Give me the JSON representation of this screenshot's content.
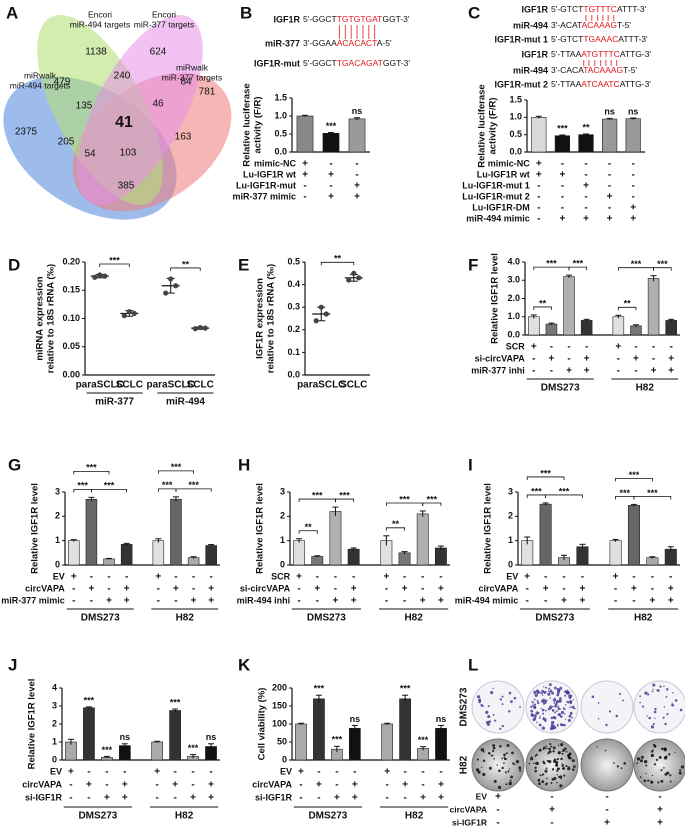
{
  "venn": {
    "panel": "A",
    "sets": [
      {
        "name": [
          "miRwalk",
          "miR-494 targets"
        ]
      },
      {
        "name": [
          "Encori",
          "miR-494 targets"
        ]
      },
      {
        "name": [
          "Encori",
          "miR-377 targets"
        ]
      },
      {
        "name": [
          "miRwalk",
          "miR-377 targets"
        ]
      }
    ],
    "regions": [
      2375,
      1138,
      624,
      781,
      479,
      240,
      84,
      135,
      46,
      41,
      205,
      163,
      54,
      103,
      385
    ]
  },
  "sequences_b": [
    {
      "name": "IGF1R",
      "pre": "5'-GGCT",
      "core": "TGTGTGAT",
      "post": "GGT-3'"
    },
    {
      "name": "miR-377",
      "pre": "3'-GGAA",
      "core": "ACACACT",
      "post": "A-5'"
    },
    {
      "name": "IGF1R-mut",
      "pre": "5'-GGCT",
      "core": "TGACAGAT",
      "post": "GGT-3'"
    }
  ],
  "sequences_c": [
    {
      "name": "IGF1R",
      "pre": "5'-GTCT",
      "core": "TGTTTC",
      "post": "ATTT-3'"
    },
    {
      "name": "miR-494",
      "pre": "3'-ACAT",
      "core": "ACAAAG",
      "post": "T-5'"
    },
    {
      "name": "IGF1R-mut 1",
      "pre": "5'-GTCT",
      "core": "TGAAAC",
      "post": "ATTT-3'"
    },
    {
      "name": "IGF1R",
      "pre": "5'-TTAA",
      "core": "ATGTTTC",
      "post": "ATTG-3'"
    },
    {
      "name": "miR-494",
      "pre": "3'-CACA",
      "core": "TACAAAG",
      "post": "T-5'"
    },
    {
      "name": "IGF1R-mut 2",
      "pre": "5'-TTAA",
      "core": "ATCAATC",
      "post": "ATTG-3'"
    }
  ],
  "chart_data": [
    {
      "panel": "B",
      "type": "bar",
      "ylabel": [
        "Relative luciferase",
        "activity (F/R)"
      ],
      "ylim": [
        0,
        1.5
      ],
      "yticks": [
        {
          "value": 0,
          "label": "0.0"
        },
        {
          "value": 0.5,
          "label": "0.5"
        },
        {
          "value": 1,
          "label": "1.0"
        },
        {
          "value": 1.5,
          "label": "1.5"
        }
      ],
      "values": [
        1.0,
        0.52,
        0.92
      ],
      "errors": [
        0.02,
        0.02,
        0.03
      ],
      "colors": [
        "#888888",
        "#111111",
        "#9a9a9a"
      ],
      "annotations": [
        null,
        "***",
        "ns"
      ],
      "conditions": [
        {
          "name": "mimic-NC",
          "marks": [
            "+",
            "-",
            "-"
          ]
        },
        {
          "name": "Lu-IGF1R wt",
          "marks": [
            "+",
            "+",
            "-"
          ]
        },
        {
          "name": "Lu-IGF1R-mut",
          "marks": [
            "-",
            "-",
            "+"
          ]
        },
        {
          "name": "miR-377 mimic",
          "marks": [
            "-",
            "+",
            "+"
          ]
        }
      ]
    },
    {
      "panel": "C",
      "type": "bar",
      "ylabel": [
        "Relative luciferase",
        "activity (F/R)"
      ],
      "ylim": [
        0,
        1.5
      ],
      "yticks": [
        {
          "value": 0,
          "label": "0.0"
        },
        {
          "value": 0.5,
          "label": "0.5"
        },
        {
          "value": 1,
          "label": "1.0"
        },
        {
          "value": 1.5,
          "label": "1.5"
        }
      ],
      "values": [
        1.0,
        0.47,
        0.5,
        0.95,
        0.96
      ],
      "errors": [
        0.03,
        0.02,
        0.02,
        0.02,
        0.02
      ],
      "colors": [
        "#d9d9d9",
        "#111111",
        "#111111",
        "#999999",
        "#999999"
      ],
      "annotations": [
        null,
        "***",
        "**",
        "ns",
        "ns"
      ],
      "conditions": [
        {
          "name": "mimic-NC",
          "marks": [
            "+",
            "-",
            "-",
            "-",
            "-"
          ]
        },
        {
          "name": "Lu-IGF1R wt",
          "marks": [
            "+",
            "+",
            "-",
            "-",
            "-"
          ]
        },
        {
          "name": "Lu-IGF1R-mut 1",
          "marks": [
            "-",
            "-",
            "+",
            "-",
            "-"
          ]
        },
        {
          "name": "Lu-IGF1R-mut 2",
          "marks": [
            "-",
            "-",
            "-",
            "+",
            "-"
          ]
        },
        {
          "name": "Lu-IGF1R-DM",
          "marks": [
            "-",
            "-",
            "-",
            "-",
            "+"
          ]
        },
        {
          "name": "miR-494 mimic",
          "marks": [
            "-",
            "+",
            "+",
            "+",
            "+"
          ]
        }
      ]
    },
    {
      "panel": "D",
      "type": "dot",
      "ylabel": [
        "miRNA expression",
        "relative to 18S rRNA (‰)"
      ],
      "ylim": [
        0,
        0.2
      ],
      "yticks": [
        {
          "value": 0,
          "label": "0.00"
        },
        {
          "value": 0.05,
          "label": "0.05"
        },
        {
          "value": 0.1,
          "label": "0.10"
        },
        {
          "value": 0.15,
          "label": "0.15"
        },
        {
          "value": 0.2,
          "label": "0.20"
        }
      ],
      "categories": [
        "paraSCLC",
        "SCLC",
        "paraSCLC",
        "SCLC"
      ],
      "groups": [
        "miR-377",
        "miR-494"
      ],
      "points": [
        [
          0.173,
          0.177,
          0.175
        ],
        [
          0.105,
          0.112,
          0.109
        ],
        [
          0.145,
          0.17,
          0.158
        ],
        [
          0.082,
          0.084,
          0.083
        ]
      ],
      "means": [
        0.175,
        0.109,
        0.158,
        0.083
      ],
      "sds": [
        0.003,
        0.005,
        0.013,
        0.002
      ],
      "color": "#444444",
      "brackets": [
        {
          "from": 0,
          "to": 1,
          "label": "***"
        },
        {
          "from": 2,
          "to": 3,
          "label": "**"
        }
      ]
    },
    {
      "panel": "E",
      "type": "dot",
      "ylabel": [
        "IGF1R expression",
        "relative to 18S rRNA (‰)"
      ],
      "ylim": [
        0,
        0.5
      ],
      "yticks": [
        {
          "value": 0,
          "label": "0.0"
        },
        0.1,
        0.2,
        0.3,
        0.4,
        0.5
      ],
      "categories": [
        "paraSCLC",
        "SCLC"
      ],
      "points": [
        [
          0.24,
          0.3,
          0.27
        ],
        [
          0.42,
          0.45,
          0.43
        ]
      ],
      "means": [
        0.27,
        0.43
      ],
      "sds": [
        0.03,
        0.015
      ],
      "color": "#444444",
      "brackets": [
        {
          "from": 0,
          "to": 1,
          "label": "**"
        }
      ]
    },
    {
      "panel": "F",
      "type": "bar",
      "ylabel": [
        "Relative IGF1R level"
      ],
      "ylim": [
        0,
        4
      ],
      "yticks": [
        {
          "value": 0,
          "label": "0.0"
        },
        {
          "value": 1,
          "label": "1.0"
        },
        {
          "value": 2,
          "label": "2.0"
        },
        {
          "value": 3,
          "label": "3.0"
        },
        {
          "value": 4,
          "label": "4.0"
        }
      ],
      "values": [
        1.0,
        0.6,
        3.2,
        0.8,
        1.0,
        0.5,
        3.1,
        0.8
      ],
      "errors": [
        0.1,
        0.05,
        0.08,
        0.06,
        0.08,
        0.06,
        0.15,
        0.06
      ],
      "colors": [
        "#e0e0e0",
        "#777777",
        "#b0b0b0",
        "#333333",
        "#e0e0e0",
        "#777777",
        "#b0b0b0",
        "#333333"
      ],
      "brackets": [
        {
          "from": 0,
          "to": 1,
          "label": "**"
        },
        {
          "from": 0,
          "to": 2,
          "label": "***"
        },
        {
          "from": 2,
          "to": 3,
          "label": "***"
        },
        {
          "from": 4,
          "to": 5,
          "label": "**"
        },
        {
          "from": 4,
          "to": 6,
          "label": "***"
        },
        {
          "from": 6,
          "to": 7,
          "label": "***"
        }
      ],
      "conditions": [
        {
          "name": "SCR",
          "marks": [
            "+",
            "-",
            "-",
            "-",
            "+",
            "-",
            "-",
            "-"
          ]
        },
        {
          "name": "si-circVAPA",
          "marks": [
            "-",
            "+",
            "-",
            "+",
            "-",
            "+",
            "-",
            "+"
          ]
        },
        {
          "name": "miR-377 inhi",
          "marks": [
            "-",
            "-",
            "+",
            "+",
            "-",
            "-",
            "+",
            "+"
          ]
        }
      ],
      "groups": [
        "DMS273",
        "H82"
      ]
    },
    {
      "panel": "G",
      "type": "bar",
      "ylabel": [
        "Relative IGF1R level"
      ],
      "ylim": [
        0,
        3
      ],
      "yticks": [
        0,
        1,
        2,
        3
      ],
      "values": [
        1.0,
        2.7,
        0.25,
        0.85,
        1.0,
        2.7,
        0.3,
        0.8
      ],
      "errors": [
        0.04,
        0.08,
        0.02,
        0.04,
        0.08,
        0.1,
        0.04,
        0.04
      ],
      "colors": [
        "#e0e0e0",
        "#666666",
        "#aaaaaa",
        "#333333",
        "#e0e0e0",
        "#666666",
        "#aaaaaa",
        "#333333"
      ],
      "brackets": [
        {
          "from": 0,
          "to": 1,
          "label": "***"
        },
        {
          "from": 1,
          "to": 3,
          "label": "***"
        },
        {
          "from": 0,
          "to": 2,
          "label": "***"
        },
        {
          "from": 4,
          "to": 5,
          "label": "***"
        },
        {
          "from": 5,
          "to": 7,
          "label": "***"
        },
        {
          "from": 4,
          "to": 6,
          "label": "***"
        }
      ],
      "conditions": [
        {
          "name": "EV",
          "marks": [
            "+",
            "-",
            "-",
            "-",
            "+",
            "-",
            "-",
            "-"
          ]
        },
        {
          "name": "circVAPA",
          "marks": [
            "-",
            "+",
            "-",
            "+",
            "-",
            "+",
            "-",
            "+"
          ]
        },
        {
          "name": "miR-377 mimic",
          "marks": [
            "-",
            "-",
            "+",
            "+",
            "-",
            "-",
            "+",
            "+"
          ]
        }
      ],
      "groups": [
        "DMS273",
        "H82"
      ]
    },
    {
      "panel": "H",
      "type": "bar",
      "ylabel": [
        "Relative IGF1R level"
      ],
      "ylim": [
        0,
        3
      ],
      "yticks": [
        0,
        1,
        2,
        3
      ],
      "values": [
        1.0,
        0.35,
        2.2,
        0.65,
        1.0,
        0.5,
        2.1,
        0.7
      ],
      "errors": [
        0.08,
        0.03,
        0.18,
        0.05,
        0.2,
        0.05,
        0.12,
        0.08
      ],
      "colors": [
        "#e0e0e0",
        "#777777",
        "#b0b0b0",
        "#333333",
        "#e0e0e0",
        "#777777",
        "#b0b0b0",
        "#333333"
      ],
      "brackets": [
        {
          "from": 0,
          "to": 1,
          "label": "**"
        },
        {
          "from": 0,
          "to": 2,
          "label": "***"
        },
        {
          "from": 2,
          "to": 3,
          "label": "***"
        },
        {
          "from": 4,
          "to": 5,
          "label": "**"
        },
        {
          "from": 4,
          "to": 6,
          "label": "***"
        },
        {
          "from": 6,
          "to": 7,
          "label": "***"
        }
      ],
      "conditions": [
        {
          "name": "SCR",
          "marks": [
            "+",
            "-",
            "-",
            "-",
            "+",
            "-",
            "-",
            "-"
          ]
        },
        {
          "name": "si-circVAPA",
          "marks": [
            "-",
            "+",
            "-",
            "+",
            "-",
            "+",
            "-",
            "+"
          ]
        },
        {
          "name": "miR-494 inhi",
          "marks": [
            "-",
            "-",
            "+",
            "+",
            "-",
            "-",
            "+",
            "+"
          ]
        }
      ],
      "groups": [
        "DMS273",
        "H82"
      ]
    },
    {
      "panel": "I",
      "type": "bar",
      "ylabel": [
        "Relative IGF1R level"
      ],
      "ylim": [
        0,
        3
      ],
      "yticks": [
        0,
        1,
        2,
        3
      ],
      "values": [
        1.0,
        2.5,
        0.3,
        0.75,
        1.0,
        2.45,
        0.3,
        0.65
      ],
      "errors": [
        0.15,
        0.05,
        0.1,
        0.1,
        0.05,
        0.04,
        0.04,
        0.1
      ],
      "colors": [
        "#e0e0e0",
        "#666666",
        "#aaaaaa",
        "#333333",
        "#e0e0e0",
        "#666666",
        "#aaaaaa",
        "#333333"
      ],
      "brackets": [
        {
          "from": 0,
          "to": 1,
          "label": "***"
        },
        {
          "from": 1,
          "to": 3,
          "label": "***"
        },
        {
          "from": 0,
          "to": 2,
          "label": "***"
        },
        {
          "from": 4,
          "to": 5,
          "label": "***"
        },
        {
          "from": 5,
          "to": 7,
          "label": "***"
        },
        {
          "from": 4,
          "to": 6,
          "label": "***"
        }
      ],
      "conditions": [
        {
          "name": "EV",
          "marks": [
            "+",
            "-",
            "-",
            "-",
            "+",
            "-",
            "-",
            "-"
          ]
        },
        {
          "name": "circVAPA",
          "marks": [
            "-",
            "+",
            "-",
            "+",
            "-",
            "+",
            "-",
            "+"
          ]
        },
        {
          "name": "miR-494 mimic",
          "marks": [
            "-",
            "-",
            "+",
            "+",
            "-",
            "-",
            "+",
            "+"
          ]
        }
      ],
      "groups": [
        "DMS273",
        "H82"
      ]
    },
    {
      "panel": "J",
      "type": "bar",
      "ylabel": [
        "Relative IGF1R level"
      ],
      "ylim": [
        0,
        4
      ],
      "yticks": [
        0,
        1,
        2,
        3,
        4
      ],
      "values": [
        1.0,
        2.9,
        0.15,
        0.8,
        1.0,
        2.75,
        0.2,
        0.75
      ],
      "errors": [
        0.15,
        0.05,
        0.05,
        0.1,
        0.04,
        0.08,
        0.1,
        0.15
      ],
      "colors": [
        "#aaaaaa",
        "#333333",
        "#aaaaaa",
        "#111111",
        "#aaaaaa",
        "#333333",
        "#aaaaaa",
        "#111111"
      ],
      "annotations": [
        null,
        "***",
        "***",
        "ns",
        null,
        "***",
        "***",
        "ns"
      ],
      "conditions": [
        {
          "name": "EV",
          "marks": [
            "+",
            "-",
            "-",
            "-",
            "+",
            "-",
            "-",
            "-"
          ]
        },
        {
          "name": "circVAPA",
          "marks": [
            "-",
            "+",
            "-",
            "+",
            "-",
            "+",
            "-",
            "+"
          ]
        },
        {
          "name": "si-IGF1R",
          "marks": [
            "-",
            "-",
            "+",
            "+",
            "-",
            "-",
            "+",
            "+"
          ]
        }
      ],
      "groups": [
        "DMS273",
        "H82"
      ]
    },
    {
      "panel": "K",
      "type": "bar",
      "ylabel": [
        "Cell viability (%)"
      ],
      "ylim": [
        0,
        200
      ],
      "yticks": [
        0,
        50,
        100,
        150,
        200
      ],
      "values": [
        100,
        170,
        30,
        88,
        100,
        170,
        32,
        88
      ],
      "errors": [
        2,
        10,
        8,
        8,
        2,
        10,
        5,
        8
      ],
      "colors": [
        "#aaaaaa",
        "#333333",
        "#aaaaaa",
        "#111111",
        "#aaaaaa",
        "#333333",
        "#aaaaaa",
        "#111111"
      ],
      "annotations": [
        null,
        "***",
        "***",
        "ns",
        null,
        "***",
        "***",
        "ns"
      ],
      "conditions": [
        {
          "name": "EV",
          "marks": [
            "+",
            "-",
            "-",
            "-",
            "+",
            "-",
            "-",
            "-"
          ]
        },
        {
          "name": "circVAPA",
          "marks": [
            "-",
            "+",
            "-",
            "+",
            "-",
            "+",
            "-",
            "+"
          ]
        },
        {
          "name": "si-IGF1R",
          "marks": [
            "-",
            "-",
            "+",
            "+",
            "-",
            "-",
            "+",
            "+"
          ]
        }
      ],
      "groups": [
        "DMS273",
        "H82"
      ]
    }
  ],
  "colony_assay": {
    "panel": "L",
    "cell_lines": [
      "DMS273",
      "H82"
    ],
    "conditions": [
      {
        "name": "EV",
        "marks": [
          "+",
          "-",
          "-",
          "-"
        ]
      },
      {
        "name": "circVAPA",
        "marks": [
          "-",
          "+",
          "-",
          "+"
        ]
      },
      {
        "name": "si-IGF1R",
        "marks": [
          "-",
          "-",
          "+",
          "+"
        ]
      }
    ]
  }
}
